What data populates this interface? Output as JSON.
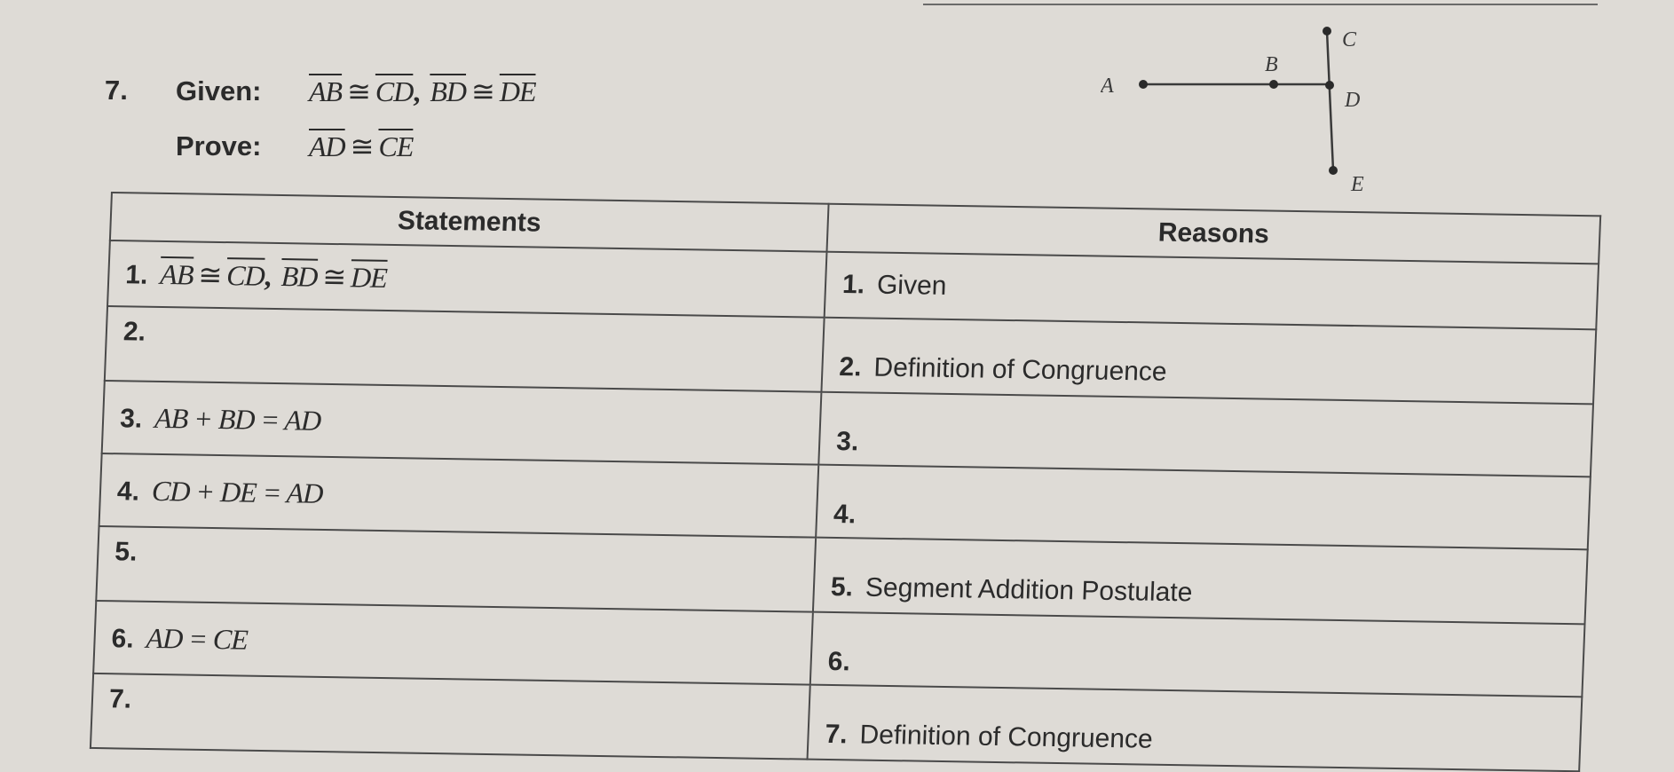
{
  "problem": {
    "number": "7.",
    "given_label": "Given:",
    "given": {
      "s1": "AB",
      "s2": "CD",
      "s3": "BD",
      "s4": "DE",
      "cong": "≅",
      "comma": ","
    },
    "prove_label": "Prove:",
    "prove": {
      "s1": "AD",
      "s2": "CE",
      "cong": "≅"
    }
  },
  "diagram": {
    "points": [
      "A",
      "B",
      "C",
      "D",
      "E"
    ]
  },
  "table": {
    "headers": [
      "Statements",
      "Reasons"
    ],
    "rows": [
      {
        "n": "1.",
        "statement": "",
        "reason_n": "1.",
        "reason": "Given"
      },
      {
        "n": "2.",
        "statement": "",
        "reason_n": "2.",
        "reason": "Definition of Congruence"
      },
      {
        "n": "3.",
        "statement": "AB + BD = AD",
        "reason_n": "3.",
        "reason": ""
      },
      {
        "n": "4.",
        "statement": "CD + DE = AD",
        "reason_n": "4.",
        "reason": ""
      },
      {
        "n": "5.",
        "statement": "",
        "reason_n": "5.",
        "reason": "Segment Addition Postulate"
      },
      {
        "n": "6.",
        "statement": "AD = CE",
        "reason_n": "6.",
        "reason": ""
      },
      {
        "n": "7.",
        "statement": "",
        "reason_n": "7.",
        "reason": "Definition of Congruence"
      }
    ]
  }
}
